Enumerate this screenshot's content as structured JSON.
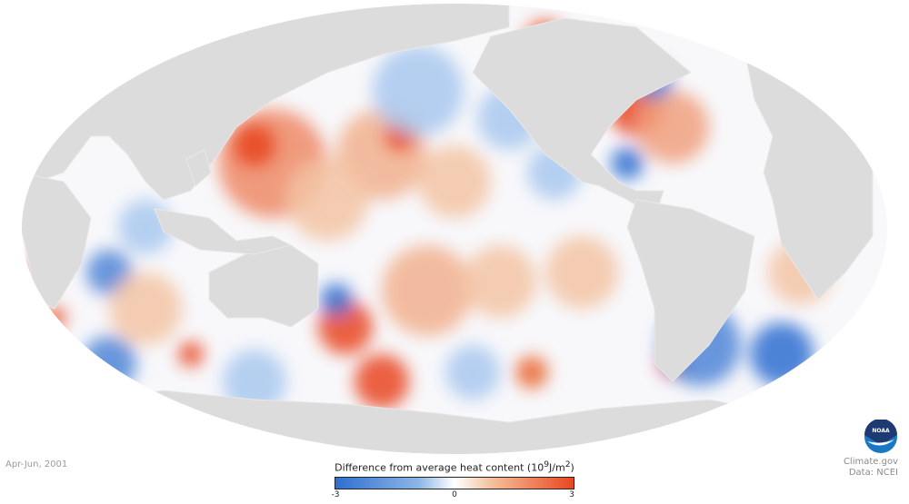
{
  "date_label": "Apr-Jun, 2001",
  "legend": {
    "title": "Difference from average heat content",
    "units_base": "(10",
    "units_exp": "9",
    "units_mid": "J/m",
    "units_exp2": "2",
    "units_end": ")",
    "ticks": [
      "-3",
      "0",
      "3"
    ],
    "min": -3,
    "max": 3,
    "colors": {
      "low": "#2f6fd0",
      "mid": "#ffffff",
      "high": "#e9461f"
    }
  },
  "credit": {
    "site": "Climate.gov",
    "source": "Data: NCEI",
    "logo_text": "NOAA"
  },
  "colors": {
    "land": "#dcdcdc",
    "ocean": "#f8f8fb"
  }
}
